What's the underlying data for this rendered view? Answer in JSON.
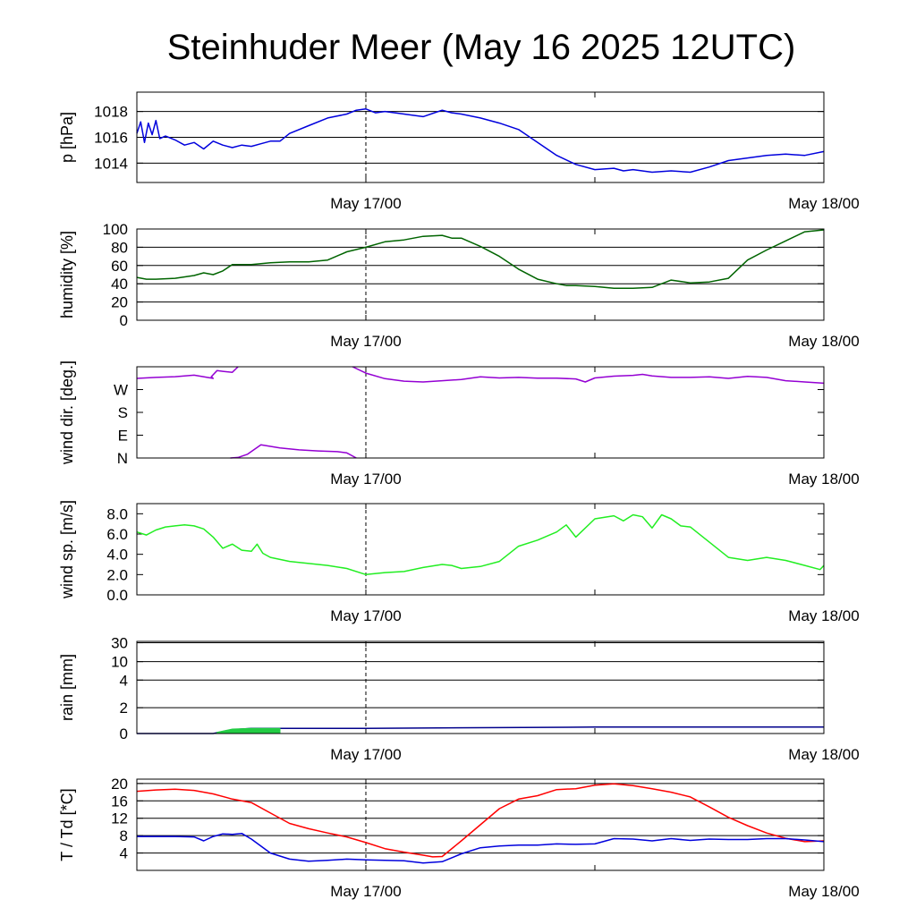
{
  "title": "Steinhuder Meer (May 16 2025 12UTC)",
  "chart_data": [
    {
      "type": "line",
      "ylabel": "p [hPa]",
      "ylim": [
        1012.5,
        1019.5
      ],
      "yticks": [
        1014,
        1016,
        1018
      ],
      "yticklabels": [
        "1014",
        "1016",
        "1018"
      ],
      "grid": true,
      "xlim": [
        0,
        36
      ],
      "xticks": [
        12,
        36
      ],
      "xticklabels": [
        "May 17/00",
        "May 18/00"
      ],
      "now_line": 12,
      "series": [
        {
          "color": "#0000dd",
          "x": [
            0,
            0.2,
            0.4,
            0.6,
            0.8,
            1.0,
            1.2,
            1.5,
            2,
            2.5,
            3,
            3.5,
            4,
            4.5,
            5,
            5.5,
            6,
            6.5,
            7,
            7.5,
            8,
            9,
            10,
            11,
            11.5,
            12,
            12.5,
            13,
            14,
            15,
            16,
            16.5,
            17,
            18,
            19,
            20,
            21,
            22,
            23,
            24,
            25,
            25.5,
            26,
            27,
            28,
            29,
            30,
            31,
            32,
            33,
            34,
            35,
            36
          ],
          "y": [
            1016.3,
            1017.2,
            1015.6,
            1017.1,
            1016.2,
            1017.3,
            1015.9,
            1016.1,
            1015.8,
            1015.4,
            1015.6,
            1015.1,
            1015.7,
            1015.4,
            1015.2,
            1015.4,
            1015.3,
            1015.5,
            1015.7,
            1015.7,
            1016.3,
            1016.9,
            1017.5,
            1017.8,
            1018.1,
            1018.2,
            1017.9,
            1018.0,
            1017.8,
            1017.6,
            1018.1,
            1017.9,
            1017.8,
            1017.5,
            1017.1,
            1016.6,
            1015.6,
            1014.6,
            1013.9,
            1013.5,
            1013.6,
            1013.4,
            1013.5,
            1013.3,
            1013.4,
            1013.3,
            1013.7,
            1014.2,
            1014.4,
            1014.6,
            1014.7,
            1014.6,
            1014.9
          ]
        }
      ]
    },
    {
      "type": "line",
      "ylabel": "humidity [%]",
      "ylim": [
        0,
        100
      ],
      "yticks": [
        0,
        20,
        40,
        60,
        80,
        100
      ],
      "yticklabels": [
        "0",
        "20",
        "40",
        "60",
        "80",
        "100"
      ],
      "grid": true,
      "xlim": [
        0,
        36
      ],
      "xticks": [
        12,
        36
      ],
      "xticklabels": [
        "May 17/00",
        "May 18/00"
      ],
      "now_line": 12,
      "series": [
        {
          "color": "#006400",
          "x": [
            0,
            0.5,
            1,
            2,
            3,
            3.5,
            4,
            4.5,
            5,
            6,
            7,
            8,
            9,
            10,
            11,
            12,
            13,
            14,
            15,
            16,
            16.5,
            17,
            18,
            19,
            20,
            21,
            22,
            22.5,
            23,
            24,
            25,
            26,
            27,
            28,
            29,
            30,
            31,
            32,
            33,
            34,
            35,
            36
          ],
          "y": [
            47,
            45,
            45,
            46,
            49,
            52,
            50,
            54,
            61,
            61,
            63,
            64,
            64,
            66,
            75,
            80,
            86,
            88,
            92,
            93,
            90,
            90,
            81,
            70,
            56,
            45,
            40,
            38,
            38,
            37,
            35,
            35,
            36,
            44,
            41,
            42,
            46,
            66,
            77,
            87,
            97,
            99
          ]
        }
      ]
    },
    {
      "type": "line",
      "ylabel": "wind dir. [deg.]",
      "ylim": [
        0,
        360
      ],
      "yticks": [
        0,
        90,
        180,
        270
      ],
      "yticklabels": [
        "N",
        "E",
        "S",
        "W"
      ],
      "grid": false,
      "xlim": [
        0,
        36
      ],
      "xticks": [
        12,
        36
      ],
      "xticklabels": [
        "May 17/00",
        "May 18/00"
      ],
      "now_line": 12,
      "series": [
        {
          "color": "#9400d3",
          "x": [
            0,
            1,
            2,
            3,
            4,
            3.9,
            4.2,
            4.5,
            5,
            5.3
          ],
          "y": [
            314,
            318,
            321,
            327,
            314,
            321,
            345,
            342,
            338,
            360
          ]
        },
        {
          "color": "#9400d3",
          "x": [
            4.9,
            5.3,
            5.8,
            6.5,
            7.5,
            8.5,
            9.5,
            10.5,
            11,
            11.5
          ],
          "y": [
            0,
            2,
            15,
            52,
            40,
            32,
            28,
            25,
            20,
            0
          ]
        },
        {
          "color": "#9400d3",
          "x": [
            11.3,
            12,
            13,
            14,
            15,
            16,
            17,
            18,
            19,
            20,
            21,
            22,
            23,
            23.5,
            24,
            25,
            26,
            26.5,
            27,
            28,
            29,
            30,
            31,
            32,
            33,
            34,
            35,
            36
          ],
          "y": [
            360,
            335,
            313,
            303,
            300,
            305,
            310,
            320,
            316,
            318,
            315,
            315,
            312,
            300,
            316,
            323,
            326,
            330,
            324,
            318,
            318,
            320,
            314,
            322,
            318,
            305,
            300,
            295
          ]
        }
      ]
    },
    {
      "type": "line",
      "ylabel": "wind sp. [m/s]",
      "ylim": [
        0,
        9
      ],
      "yticks": [
        0,
        2,
        4,
        6,
        8
      ],
      "yticklabels": [
        "0.0",
        "2.0",
        "4.0",
        "6.0",
        "8.0"
      ],
      "grid": false,
      "xlim": [
        0,
        36
      ],
      "xticks": [
        12,
        36
      ],
      "xticklabels": [
        "May 17/00",
        "May 18/00"
      ],
      "now_line": 12,
      "series": [
        {
          "color": "#22ee22",
          "x": [
            0,
            0.5,
            1,
            1.5,
            2,
            2.5,
            3,
            3.5,
            4,
            4.5,
            5,
            5.5,
            6,
            6.3,
            6.6,
            7,
            8,
            9,
            10,
            11,
            12,
            13,
            14,
            15,
            16,
            16.5,
            17,
            18,
            19,
            20,
            21,
            22,
            22.5,
            23,
            24,
            25,
            25.5,
            26,
            26.5,
            27,
            27.5,
            28,
            28.5,
            29,
            30,
            31,
            32,
            33,
            34,
            35,
            35.8,
            36
          ],
          "y": [
            6.2,
            5.9,
            6.4,
            6.7,
            6.8,
            6.9,
            6.8,
            6.5,
            5.7,
            4.6,
            5.0,
            4.4,
            4.3,
            5.0,
            4.1,
            3.7,
            3.3,
            3.1,
            2.9,
            2.6,
            2.0,
            2.2,
            2.3,
            2.7,
            3.0,
            2.9,
            2.6,
            2.8,
            3.3,
            4.8,
            5.4,
            6.2,
            6.9,
            5.7,
            7.5,
            7.8,
            7.3,
            7.9,
            7.7,
            6.6,
            7.9,
            7.5,
            6.8,
            6.7,
            5.2,
            3.7,
            3.4,
            3.7,
            3.4,
            2.9,
            2.5,
            2.9
          ]
        }
      ]
    },
    {
      "type": "area",
      "ylabel": "rain [mm]",
      "ylim": [
        0,
        30
      ],
      "yticks": [
        0,
        2,
        4,
        10,
        30
      ],
      "yticklabels": [
        "0",
        "2",
        "4",
        "10",
        "30"
      ],
      "grid": true,
      "xlim": [
        0,
        36
      ],
      "xticks": [
        12,
        36
      ],
      "xticklabels": [
        "May 17/00",
        "May 18/00"
      ],
      "now_line": 12,
      "series": [
        {
          "color": "#00008b",
          "x": [
            0,
            4,
            5,
            6,
            12,
            24,
            36
          ],
          "y": [
            0,
            0,
            0.3,
            0.4,
            0.4,
            0.5,
            0.5
          ]
        },
        {
          "color": "#22cc44",
          "fill": true,
          "x": [
            4.2,
            5,
            6,
            7.5
          ],
          "y": [
            0.1,
            0.35,
            0.4,
            0.4
          ]
        }
      ]
    },
    {
      "type": "line",
      "ylabel": "T / Td [*C]",
      "ylim": [
        0,
        21
      ],
      "yticks": [
        4,
        8,
        12,
        16,
        20
      ],
      "yticklabels": [
        "4",
        "8",
        "12",
        "16",
        "20"
      ],
      "grid": true,
      "xlim": [
        0,
        36
      ],
      "xticks": [
        12,
        36
      ],
      "xticklabels": [
        "May 17/00",
        "May 18/00"
      ],
      "now_line": 12,
      "series": [
        {
          "color": "#ff0000",
          "x": [
            0,
            1,
            2,
            3,
            4,
            5,
            6,
            7,
            8,
            9,
            10,
            11,
            12,
            13,
            14,
            15,
            15.5,
            16,
            17,
            18,
            19,
            20,
            21,
            22,
            23,
            24,
            25,
            26,
            27,
            28,
            29,
            30,
            31,
            32,
            33,
            34,
            35,
            36
          ],
          "y": [
            18.2,
            18.5,
            18.7,
            18.4,
            17.6,
            16.4,
            15.6,
            13.2,
            10.8,
            9.6,
            8.6,
            7.7,
            6.4,
            5.0,
            4.2,
            3.5,
            3.1,
            3.2,
            6.8,
            10.5,
            14.2,
            16.4,
            17.2,
            18.6,
            18.8,
            19.6,
            19.9,
            19.5,
            18.8,
            18.0,
            16.9,
            14.6,
            12.2,
            10.3,
            8.6,
            7.4,
            6.6,
            6.8
          ]
        },
        {
          "color": "#0000dd",
          "x": [
            0,
            1,
            2,
            3,
            3.5,
            4,
            4.5,
            5,
            5.5,
            6,
            7,
            8,
            9,
            10,
            11,
            12,
            13,
            14,
            15,
            16,
            17,
            18,
            19,
            20,
            21,
            22,
            23,
            24,
            25,
            26,
            27,
            28,
            29,
            30,
            31,
            32,
            33,
            34,
            35,
            36
          ],
          "y": [
            7.8,
            7.8,
            7.8,
            7.7,
            6.8,
            7.8,
            8.4,
            8.3,
            8.5,
            7.2,
            4.0,
            2.6,
            2.1,
            2.3,
            2.6,
            2.4,
            2.3,
            2.2,
            1.7,
            2.0,
            3.8,
            5.2,
            5.6,
            5.8,
            5.8,
            6.1,
            6.0,
            6.1,
            7.3,
            7.2,
            6.8,
            7.3,
            6.9,
            7.2,
            7.1,
            7.1,
            7.3,
            7.3,
            7.0,
            6.6
          ]
        }
      ]
    }
  ]
}
